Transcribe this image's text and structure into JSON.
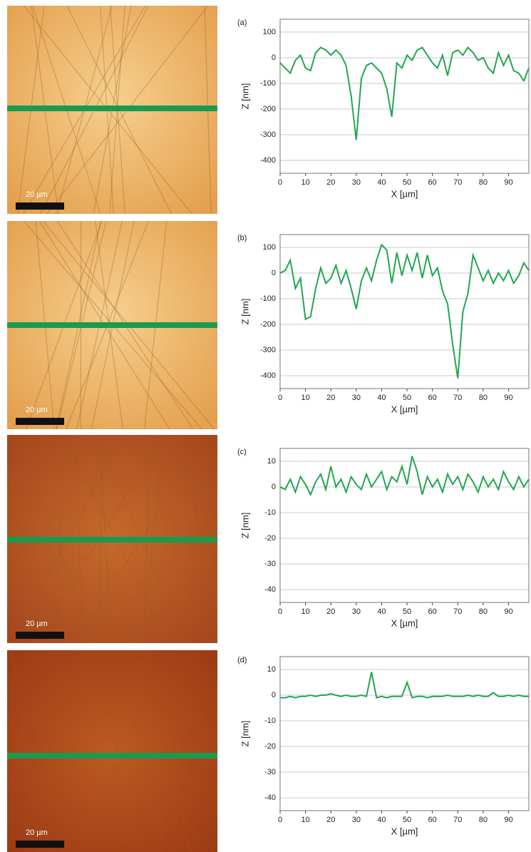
{
  "chart_data": [
    {
      "type": "line",
      "panel_label": "(a)",
      "image_scale_label": "20 µm",
      "x_label": "X [µm]",
      "y_label": "Z [nm]",
      "color": "#22a650",
      "x": [
        0,
        2,
        4,
        6,
        8,
        10,
        12,
        14,
        16,
        18,
        20,
        22,
        24,
        26,
        28,
        30,
        32,
        34,
        36,
        38,
        40,
        42,
        44,
        46,
        48,
        50,
        52,
        54,
        56,
        58,
        60,
        62,
        64,
        66,
        68,
        70,
        72,
        74,
        76,
        78,
        80,
        82,
        84,
        86,
        88,
        90,
        92,
        94,
        96,
        98
      ],
      "values": [
        -20,
        -40,
        -60,
        -10,
        10,
        -40,
        -50,
        20,
        40,
        30,
        10,
        30,
        10,
        -30,
        -150,
        -320,
        -80,
        -30,
        -20,
        -40,
        -60,
        -120,
        -230,
        -20,
        -40,
        10,
        -10,
        30,
        40,
        10,
        -20,
        -40,
        10,
        -70,
        20,
        30,
        10,
        40,
        20,
        -10,
        0,
        -40,
        -60,
        20,
        -30,
        10,
        -50,
        -60,
        -90,
        -40
      ],
      "xlim": [
        0,
        98
      ],
      "xticks": [
        0,
        10,
        20,
        30,
        40,
        50,
        60,
        70,
        80,
        90
      ],
      "ylim": [
        -450,
        150
      ],
      "yticks": [
        -400,
        -300,
        -200,
        -100,
        0,
        100
      ]
    },
    {
      "type": "line",
      "panel_label": "(b)",
      "image_scale_label": "20 µm",
      "x_label": "X [µm]",
      "y_label": "Z [nm]",
      "color": "#22a650",
      "x": [
        0,
        2,
        4,
        6,
        8,
        10,
        12,
        14,
        16,
        18,
        20,
        22,
        24,
        26,
        28,
        30,
        32,
        34,
        36,
        38,
        40,
        42,
        44,
        46,
        48,
        50,
        52,
        54,
        56,
        58,
        60,
        62,
        64,
        66,
        68,
        70,
        72,
        74,
        76,
        78,
        80,
        82,
        84,
        86,
        88,
        90,
        92,
        94,
        96,
        98
      ],
      "values": [
        0,
        10,
        50,
        -60,
        -20,
        -180,
        -170,
        -60,
        20,
        -40,
        -20,
        30,
        -40,
        10,
        -60,
        -140,
        -30,
        20,
        -30,
        50,
        110,
        90,
        -40,
        80,
        -10,
        70,
        10,
        80,
        -20,
        70,
        -10,
        20,
        -70,
        -120,
        -280,
        -410,
        -150,
        -80,
        70,
        20,
        -30,
        10,
        -40,
        0,
        -30,
        10,
        -40,
        -10,
        40,
        10
      ],
      "xlim": [
        0,
        98
      ],
      "xticks": [
        0,
        10,
        20,
        30,
        40,
        50,
        60,
        70,
        80,
        90
      ],
      "ylim": [
        -450,
        150
      ],
      "yticks": [
        -400,
        -300,
        -200,
        -100,
        0,
        100
      ]
    },
    {
      "type": "line",
      "panel_label": "(c)",
      "image_scale_label": "20 µm",
      "x_label": "X [µm]",
      "y_label": "Z [nm]",
      "color": "#22a650",
      "x": [
        0,
        2,
        4,
        6,
        8,
        10,
        12,
        14,
        16,
        18,
        20,
        22,
        24,
        26,
        28,
        30,
        32,
        34,
        36,
        38,
        40,
        42,
        44,
        46,
        48,
        50,
        52,
        54,
        56,
        58,
        60,
        62,
        64,
        66,
        68,
        70,
        72,
        74,
        76,
        78,
        80,
        82,
        84,
        86,
        88,
        90,
        92,
        94,
        96,
        98
      ],
      "values": [
        0,
        -1,
        3,
        -2,
        4,
        1,
        -3,
        2,
        5,
        -1,
        8,
        0,
        3,
        -2,
        4,
        1,
        -1,
        5,
        0,
        3,
        6,
        -1,
        4,
        2,
        8,
        1,
        12,
        6,
        -3,
        4,
        0,
        3,
        -2,
        5,
        1,
        4,
        -1,
        5,
        2,
        -2,
        4,
        0,
        3,
        -1,
        6,
        2,
        -1,
        4,
        0,
        3
      ],
      "xlim": [
        0,
        98
      ],
      "xticks": [
        0,
        10,
        20,
        30,
        40,
        50,
        60,
        70,
        80,
        90
      ],
      "ylim": [
        -45,
        15
      ],
      "yticks": [
        -40,
        -30,
        -20,
        -10,
        0,
        10
      ]
    },
    {
      "type": "line",
      "panel_label": "(d)",
      "image_scale_label": "20 µm",
      "x_label": "X [µm]",
      "y_label": "Z [nm]",
      "color": "#22a650",
      "x": [
        0,
        2,
        4,
        6,
        8,
        10,
        12,
        14,
        16,
        18,
        20,
        22,
        24,
        26,
        28,
        30,
        32,
        34,
        36,
        38,
        40,
        42,
        44,
        46,
        48,
        50,
        52,
        54,
        56,
        58,
        60,
        62,
        64,
        66,
        68,
        70,
        72,
        74,
        76,
        78,
        80,
        82,
        84,
        86,
        88,
        90,
        92,
        94,
        96,
        98
      ],
      "values": [
        -1,
        -1,
        -0.5,
        -1,
        -0.5,
        -0.5,
        0,
        -0.5,
        0,
        0,
        0.5,
        0,
        -0.5,
        0,
        -0.5,
        -0.5,
        0,
        -0.5,
        9,
        -1,
        -0.5,
        -1,
        -0.5,
        -0.5,
        -0.5,
        5,
        -1,
        -0.5,
        -0.5,
        -1,
        -0.5,
        -0.5,
        -0.5,
        0,
        -0.5,
        -0.5,
        -0.5,
        0,
        -0.5,
        0,
        -0.5,
        -0.5,
        1,
        -0.5,
        -0.5,
        0,
        -0.5,
        0,
        -0.5,
        -0.5
      ],
      "xlim": [
        0,
        98
      ],
      "xticks": [
        0,
        10,
        20,
        30,
        40,
        50,
        60,
        70,
        80,
        90
      ],
      "ylim": [
        -45,
        15
      ],
      "yticks": [
        -40,
        -30,
        -20,
        -10,
        0,
        10
      ]
    }
  ]
}
